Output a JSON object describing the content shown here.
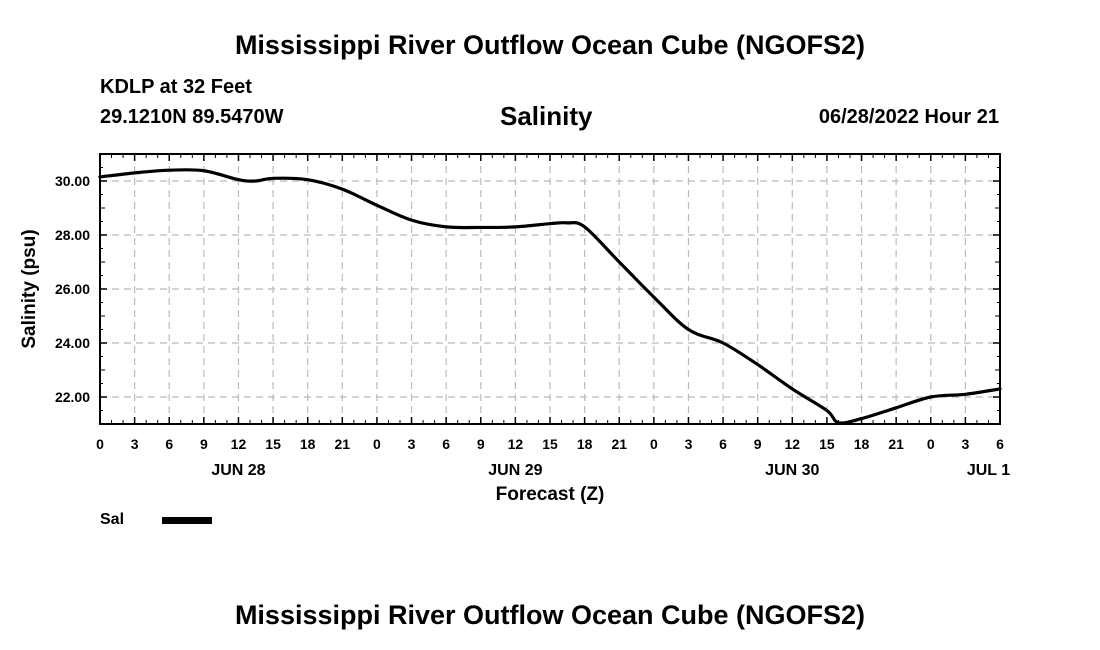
{
  "header": {
    "title": "Mississippi River Outflow Ocean Cube (NGOFS2)",
    "station": "KDLP at 32 Feet",
    "coordinates": "29.1210N  89.5470W",
    "parameter": "Salinity",
    "datetime": "06/28/2022 Hour 21"
  },
  "footer": {
    "title": "Mississippi River Outflow Ocean Cube (NGOFS2)"
  },
  "legend": {
    "label": "Sal",
    "color": "#000000"
  },
  "chart_data": {
    "type": "line",
    "title": "Salinity",
    "xlabel": "Forecast (Z)",
    "ylabel": "Salinity (psu)",
    "xlim": [
      0,
      78
    ],
    "ylim": [
      21,
      31
    ],
    "x_ticks": [
      0,
      3,
      6,
      9,
      12,
      15,
      18,
      21,
      24,
      27,
      30,
      33,
      36,
      39,
      42,
      45,
      48,
      51,
      54,
      57,
      60,
      63,
      66,
      69,
      72,
      75,
      78
    ],
    "x_tick_labels": [
      "0",
      "3",
      "6",
      "9",
      "12",
      "15",
      "18",
      "21",
      "0",
      "3",
      "6",
      "9",
      "12",
      "15",
      "18",
      "21",
      "0",
      "3",
      "6",
      "9",
      "12",
      "15",
      "18",
      "21",
      "0",
      "3",
      "6"
    ],
    "y_ticks": [
      22,
      24,
      26,
      28,
      30
    ],
    "y_tick_labels": [
      "22.00",
      "24.00",
      "26.00",
      "28.00",
      "30.00"
    ],
    "day_labels": [
      {
        "x": 12,
        "label": "JUN 28"
      },
      {
        "x": 36,
        "label": "JUN 29"
      },
      {
        "x": 60,
        "label": "JUN 30"
      },
      {
        "x": 77,
        "label": "JUL 1"
      }
    ],
    "grid": true,
    "series": [
      {
        "name": "Sal",
        "x": [
          0,
          3,
          6,
          9,
          12,
          13.5,
          15,
          18,
          21,
          24,
          27,
          30,
          33,
          36,
          39,
          40.5,
          42,
          45,
          48,
          51,
          54,
          57,
          60,
          63,
          64,
          66,
          69,
          72,
          75,
          78
        ],
        "values": [
          30.15,
          30.3,
          30.4,
          30.38,
          30.05,
          30.0,
          30.1,
          30.05,
          29.7,
          29.1,
          28.55,
          28.3,
          28.28,
          28.3,
          28.42,
          28.45,
          28.3,
          27.0,
          25.7,
          24.5,
          24.0,
          23.2,
          22.3,
          21.5,
          21.05,
          21.2,
          21.6,
          22.0,
          22.1,
          22.3
        ]
      }
    ]
  }
}
